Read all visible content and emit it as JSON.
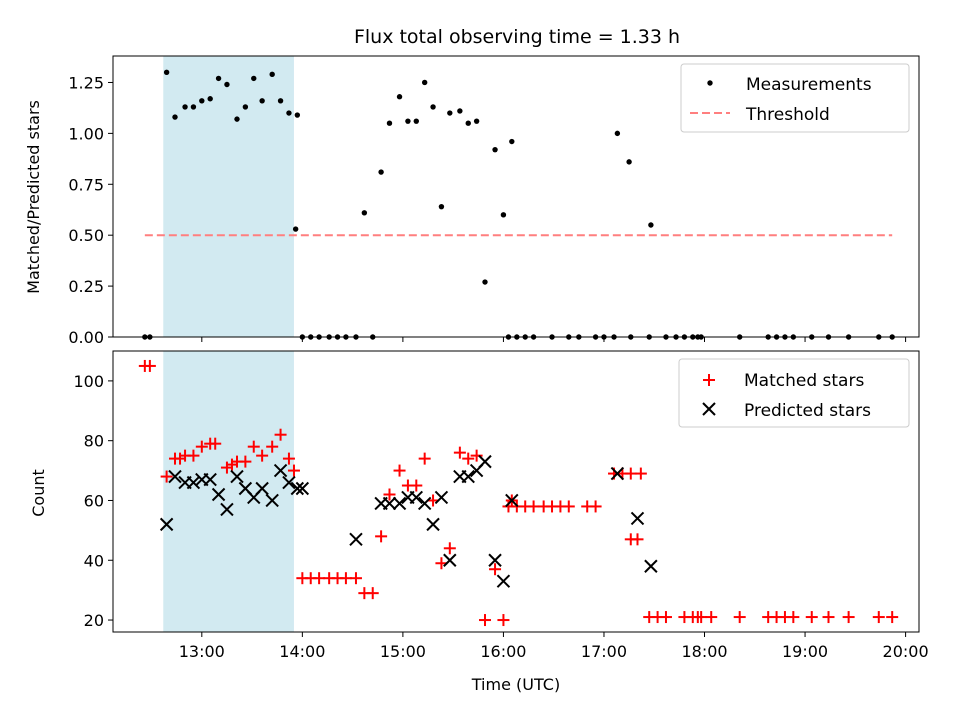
{
  "figure_title": "Flux total observing time = 1.33 h",
  "colors": {
    "measurement": "#000000",
    "threshold": "#ff7f7f",
    "matched": "#ff0000",
    "predicted": "#000000",
    "shade": "#add8e6"
  },
  "chart_data": [
    {
      "type": "scatter",
      "title": "Flux total observing time = 1.33 h",
      "xlabel": "",
      "ylabel": "Matched/Predicted stars",
      "xlim": [
        "12:07",
        "20:08"
      ],
      "ylim": [
        0,
        1.38
      ],
      "yticks": [
        "0.00",
        "0.25",
        "0.50",
        "0.75",
        "1.00",
        "1.25"
      ],
      "ytick_values": [
        0,
        0.25,
        0.5,
        0.75,
        1.0,
        1.25
      ],
      "shaded_span": [
        "12:37",
        "13:55"
      ],
      "legend": "top-right",
      "series": [
        {
          "name": "Measurements",
          "marker": "dot",
          "points": [
            [
              "12:26",
              0
            ],
            [
              "12:29",
              0
            ],
            [
              "12:39",
              1.3
            ],
            [
              "12:44",
              1.08
            ],
            [
              "12:50",
              1.13
            ],
            [
              "12:55",
              1.13
            ],
            [
              "13:00",
              1.16
            ],
            [
              "13:05",
              1.17
            ],
            [
              "13:10",
              1.27
            ],
            [
              "13:15",
              1.24
            ],
            [
              "13:21",
              1.07
            ],
            [
              "13:26",
              1.13
            ],
            [
              "13:31",
              1.27
            ],
            [
              "13:36",
              1.16
            ],
            [
              "13:42",
              1.29
            ],
            [
              "13:47",
              1.16
            ],
            [
              "13:52",
              1.1
            ],
            [
              "13:57",
              1.09
            ],
            [
              "13:56",
              0.53
            ],
            [
              "14:00",
              0
            ],
            [
              "14:05",
              0
            ],
            [
              "14:10",
              0
            ],
            [
              "14:16",
              0
            ],
            [
              "14:21",
              0
            ],
            [
              "14:26",
              0
            ],
            [
              "14:32",
              0
            ],
            [
              "14:37",
              0.61
            ],
            [
              "14:42",
              0
            ],
            [
              "14:47",
              0.81
            ],
            [
              "14:52",
              1.05
            ],
            [
              "14:58",
              1.18
            ],
            [
              "15:03",
              1.06
            ],
            [
              "15:08",
              1.06
            ],
            [
              "15:13",
              1.25
            ],
            [
              "15:18",
              1.13
            ],
            [
              "15:23",
              0.64
            ],
            [
              "15:28",
              1.1
            ],
            [
              "15:34",
              1.11
            ],
            [
              "15:39",
              1.05
            ],
            [
              "15:44",
              1.06
            ],
            [
              "15:49",
              0.27
            ],
            [
              "15:55",
              0.92
            ],
            [
              "16:00",
              0.6
            ],
            [
              "16:05",
              0.96
            ],
            [
              "16:03",
              0
            ],
            [
              "16:08",
              0
            ],
            [
              "16:13",
              0
            ],
            [
              "16:18",
              0
            ],
            [
              "16:29",
              0
            ],
            [
              "16:39",
              0
            ],
            [
              "16:45",
              0
            ],
            [
              "16:55",
              0
            ],
            [
              "17:00",
              0
            ],
            [
              "17:06",
              0
            ],
            [
              "17:16",
              0
            ],
            [
              "17:27",
              0
            ],
            [
              "17:37",
              0
            ],
            [
              "17:43",
              0
            ],
            [
              "17:48",
              0
            ],
            [
              "17:53",
              0
            ],
            [
              "17:58",
              0
            ],
            [
              "17:56",
              0
            ],
            [
              "17:08",
              1.0
            ],
            [
              "17:15",
              0.86
            ],
            [
              "17:28",
              0.55
            ],
            [
              "18:21",
              0
            ],
            [
              "18:38",
              0
            ],
            [
              "18:43",
              0
            ],
            [
              "18:48",
              0
            ],
            [
              "18:53",
              0
            ],
            [
              "19:04",
              0
            ],
            [
              "19:14",
              0
            ],
            [
              "19:26",
              0
            ],
            [
              "19:44",
              0
            ],
            [
              "19:52",
              0
            ]
          ]
        },
        {
          "name": "Threshold",
          "marker": "dashed-line",
          "x": [
            "12:26",
            "19:52"
          ],
          "y": [
            0.5,
            0.5
          ]
        }
      ]
    },
    {
      "type": "scatter",
      "title": "",
      "xlabel": "Time (UTC)",
      "ylabel": "Count",
      "xlim": [
        "12:07",
        "20:08"
      ],
      "ylim": [
        16,
        110
      ],
      "yticks": [
        "20",
        "40",
        "60",
        "80",
        "100"
      ],
      "ytick_values": [
        20,
        40,
        60,
        80,
        100
      ],
      "xticks": [
        "13:00",
        "14:00",
        "15:00",
        "16:00",
        "17:00",
        "18:00",
        "19:00",
        "20:00"
      ],
      "shaded_span": [
        "12:37",
        "13:55"
      ],
      "legend": "top-right",
      "series": [
        {
          "name": "Matched stars",
          "marker": "plus",
          "points": [
            [
              "12:26",
              105
            ],
            [
              "12:29",
              105
            ],
            [
              "12:39",
              68
            ],
            [
              "12:44",
              74
            ],
            [
              "12:47",
              74
            ],
            [
              "12:50",
              75
            ],
            [
              "12:55",
              75
            ],
            [
              "13:00",
              78
            ],
            [
              "13:05",
              79
            ],
            [
              "13:08",
              79
            ],
            [
              "13:15",
              71
            ],
            [
              "13:18",
              72
            ],
            [
              "13:21",
              73
            ],
            [
              "13:26",
              73
            ],
            [
              "13:31",
              78
            ],
            [
              "13:36",
              75
            ],
            [
              "13:42",
              78
            ],
            [
              "13:47",
              82
            ],
            [
              "13:52",
              74
            ],
            [
              "13:55",
              70
            ],
            [
              "14:00",
              34
            ],
            [
              "14:05",
              34
            ],
            [
              "14:10",
              34
            ],
            [
              "14:16",
              34
            ],
            [
              "14:21",
              34
            ],
            [
              "14:26",
              34
            ],
            [
              "14:32",
              34
            ],
            [
              "14:37",
              29
            ],
            [
              "14:42",
              29
            ],
            [
              "14:47",
              48
            ],
            [
              "14:52",
              62
            ],
            [
              "14:58",
              70
            ],
            [
              "15:03",
              65
            ],
            [
              "15:08",
              65
            ],
            [
              "15:13",
              74
            ],
            [
              "15:18",
              60
            ],
            [
              "15:23",
              39
            ],
            [
              "15:28",
              44
            ],
            [
              "15:34",
              76
            ],
            [
              "15:39",
              74
            ],
            [
              "15:44",
              75
            ],
            [
              "15:49",
              20
            ],
            [
              "15:55",
              37
            ],
            [
              "16:00",
              20
            ],
            [
              "16:05",
              60
            ],
            [
              "16:03",
              58
            ],
            [
              "16:08",
              58
            ],
            [
              "16:13",
              58
            ],
            [
              "16:18",
              58
            ],
            [
              "16:24",
              58
            ],
            [
              "16:29",
              58
            ],
            [
              "16:34",
              58
            ],
            [
              "16:39",
              58
            ],
            [
              "16:50",
              58
            ],
            [
              "16:55",
              58
            ],
            [
              "17:06",
              69
            ],
            [
              "17:11",
              69
            ],
            [
              "17:16",
              69
            ],
            [
              "17:22",
              69
            ],
            [
              "17:16",
              47
            ],
            [
              "17:20",
              47
            ],
            [
              "17:27",
              21
            ],
            [
              "17:32",
              21
            ],
            [
              "17:37",
              21
            ],
            [
              "17:48",
              21
            ],
            [
              "17:53",
              21
            ],
            [
              "17:58",
              21
            ],
            [
              "18:04",
              21
            ],
            [
              "17:56",
              21
            ],
            [
              "18:21",
              21
            ],
            [
              "18:38",
              21
            ],
            [
              "18:43",
              21
            ],
            [
              "18:48",
              21
            ],
            [
              "18:53",
              21
            ],
            [
              "19:04",
              21
            ],
            [
              "19:14",
              21
            ],
            [
              "19:26",
              21
            ],
            [
              "19:44",
              21
            ],
            [
              "19:52",
              21
            ]
          ]
        },
        {
          "name": "Predicted stars",
          "marker": "x",
          "points": [
            [
              "12:39",
              52
            ],
            [
              "12:44",
              68
            ],
            [
              "12:50",
              66
            ],
            [
              "12:55",
              66
            ],
            [
              "13:00",
              67
            ],
            [
              "13:05",
              67
            ],
            [
              "13:10",
              62
            ],
            [
              "13:15",
              57
            ],
            [
              "13:21",
              68
            ],
            [
              "13:26",
              64
            ],
            [
              "13:31",
              61
            ],
            [
              "13:36",
              64
            ],
            [
              "13:42",
              60
            ],
            [
              "13:47",
              70
            ],
            [
              "13:52",
              66
            ],
            [
              "13:57",
              64
            ],
            [
              "14:00",
              64
            ],
            [
              "14:32",
              47
            ],
            [
              "14:47",
              59
            ],
            [
              "14:52",
              59
            ],
            [
              "14:58",
              59
            ],
            [
              "15:03",
              61
            ],
            [
              "15:08",
              61
            ],
            [
              "15:13",
              59
            ],
            [
              "15:18",
              52
            ],
            [
              "15:23",
              61
            ],
            [
              "15:28",
              40
            ],
            [
              "15:34",
              68
            ],
            [
              "15:39",
              68
            ],
            [
              "15:44",
              70
            ],
            [
              "15:49",
              73
            ],
            [
              "15:55",
              40
            ],
            [
              "16:00",
              33
            ],
            [
              "16:05",
              60
            ],
            [
              "17:08",
              69
            ],
            [
              "17:20",
              54
            ],
            [
              "17:28",
              38
            ]
          ]
        }
      ]
    }
  ]
}
